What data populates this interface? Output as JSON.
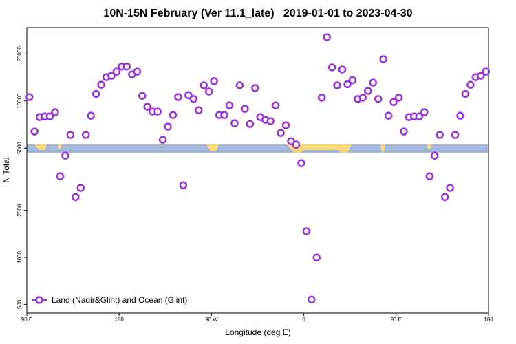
{
  "chart_data": {
    "type": "scatter",
    "title": "10N-15N February (Ver 11.1_late)   2019-01-01 to 2023-04-30",
    "xlabel": "Longitude (deg E)",
    "ylabel": "N Total",
    "yscale": "log",
    "legend": "lower left",
    "xlim": [
      90,
      540
    ],
    "xticks": [
      {
        "value": 90,
        "label": "90 E"
      },
      {
        "value": 180,
        "label": "180"
      },
      {
        "value": 270,
        "label": "90 W"
      },
      {
        "value": 360,
        "label": "0"
      },
      {
        "value": 450,
        "label": "90 E"
      },
      {
        "value": 540,
        "label": "180"
      }
    ],
    "ylim": [
      440,
      29500
    ],
    "yticks": [
      500,
      1000,
      2000,
      5000,
      10000,
      20000
    ],
    "series": [
      {
        "name": "Land (Nadir&Glint) and Ocean (Glint)",
        "color": "#9b30e0",
        "x": [
          92.5,
          97.5,
          102.5,
          107.5,
          112.5,
          117.5,
          122.5,
          127.5,
          132.5,
          137.5,
          142.5,
          147.5,
          152.5,
          157.5,
          162.5,
          167.5,
          172.5,
          177.5,
          182.5,
          187.5,
          192.5,
          197.5,
          202.5,
          207.5,
          212.5,
          217.5,
          222.5,
          227.5,
          232.5,
          237.5,
          242.5,
          247.5,
          252.5,
          257.5,
          262.5,
          267.5,
          272.5,
          277.5,
          282.5,
          287.5,
          292.5,
          297.5,
          302.5,
          307.5,
          312.5,
          317.5,
          322.5,
          327.5,
          332.5,
          337.5,
          342.5,
          347.5,
          352.5,
          357.5,
          362.5,
          367.5,
          372.5,
          377.5,
          382.5,
          387.5,
          392.5,
          397.5,
          402.5,
          407.5,
          412.5,
          417.5,
          422.5,
          427.5,
          432.5,
          437.5,
          442.5,
          447.5,
          452.5,
          457.5,
          462.5,
          467.5,
          472.5,
          477.5,
          482.5,
          487.5,
          492.5,
          497.5,
          502.5,
          507.5,
          512.5,
          517.5,
          522.5,
          527.5,
          532.5,
          537.5
        ],
        "values": [
          10600,
          6380,
          7890,
          7970,
          7970,
          8480,
          3300,
          4470,
          6070,
          2430,
          2780,
          6070,
          8050,
          11100,
          12700,
          14200,
          14500,
          15400,
          16600,
          16600,
          14800,
          15400,
          10800,
          9190,
          8560,
          8560,
          5650,
          6850,
          8130,
          10600,
          2890,
          10900,
          10300,
          8730,
          12600,
          11500,
          13400,
          8130,
          8130,
          9380,
          7200,
          12600,
          8910,
          7130,
          12100,
          7890,
          7580,
          7430,
          9380,
          6250,
          6990,
          5530,
          5260,
          4000,
          1470,
          537,
          997,
          10500,
          25600,
          16400,
          12600,
          15900,
          12800,
          13600,
          10300,
          10500,
          11600,
          13100,
          10300,
          18500,
          8050,
          9860,
          10500,
          6380,
          7890,
          7970,
          7970,
          8480,
          3300,
          4470,
          6070,
          2430,
          2780,
          6070,
          8050,
          11100,
          12700,
          14200,
          14500,
          15400
        ]
      }
    ]
  }
}
